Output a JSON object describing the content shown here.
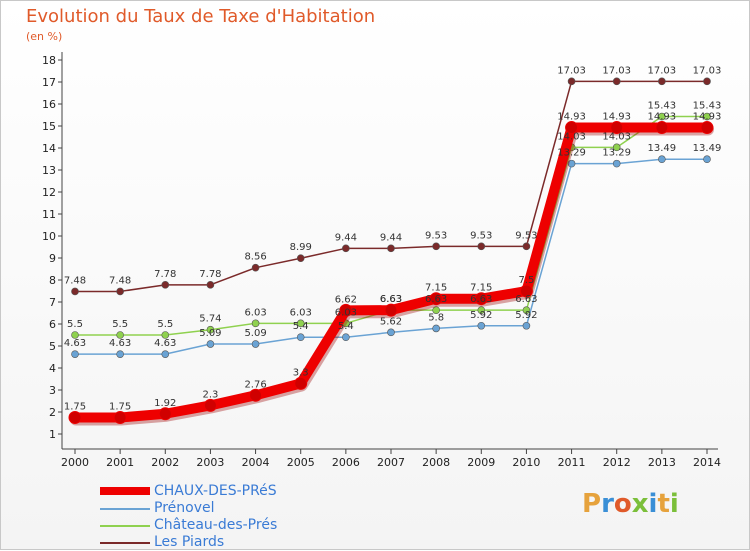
{
  "title": "Evolution du Taux de Taxe d'Habitation",
  "subtitle": "(en %)",
  "logo_text": "Proxiti",
  "chart_data": {
    "type": "line",
    "title": "Evolution du Taux de Taxe d'Habitation",
    "ylabel": "(en %)",
    "xlabel": "",
    "ylim": [
      1,
      18
    ],
    "grid": false,
    "legend_position": "bottom-left",
    "x": [
      "2000",
      "2001",
      "2002",
      "2003",
      "2004",
      "2005",
      "2006",
      "2007",
      "2008",
      "2009",
      "2010",
      "2011",
      "2012",
      "2013",
      "2014"
    ],
    "y_ticks": [
      "1",
      "2",
      "3",
      "4",
      "5",
      "6",
      "7",
      "8",
      "9",
      "10",
      "11",
      "12",
      "13",
      "14",
      "15",
      "16",
      "17",
      "18"
    ],
    "series": [
      {
        "name": "CHAUX-DES-PRéS",
        "color": "#ee0000",
        "values": [
          1.75,
          1.75,
          1.92,
          2.3,
          2.76,
          3.3,
          6.62,
          6.63,
          7.15,
          7.15,
          7.5,
          14.93,
          14.93,
          14.93,
          14.93
        ],
        "labels": [
          "1.75",
          "1.75",
          "1.92",
          "2.3",
          "2.76",
          "3.3",
          "6.62",
          "6.63",
          "7.15",
          "7.15",
          "7.5",
          "14.93",
          "14.93",
          "14.93",
          "14.93"
        ]
      },
      {
        "name": "Prénovel",
        "color": "#6aa3d4",
        "values": [
          4.63,
          4.63,
          4.63,
          5.09,
          5.09,
          5.4,
          5.4,
          5.62,
          5.8,
          5.92,
          5.92,
          13.29,
          13.29,
          13.49,
          13.49
        ],
        "labels": [
          "4.63",
          "4.63",
          "4.63",
          "5.09",
          "5.09",
          "5.4",
          "5.4",
          "5.62",
          "5.8",
          "5.92",
          "5.92",
          "13.29",
          "13.29",
          "13.49",
          "13.49"
        ]
      },
      {
        "name": "Château-des-Prés",
        "color": "#8fd14f",
        "values": [
          5.5,
          5.5,
          5.5,
          5.74,
          6.03,
          6.03,
          6.03,
          6.63,
          6.63,
          6.63,
          6.63,
          14.03,
          14.03,
          15.43,
          15.43
        ],
        "labels": [
          "5.5",
          "5.5",
          "5.5",
          "5.74",
          "6.03",
          "6.03",
          "6.03",
          "6.63",
          "6.63",
          "6.63",
          "6.63",
          "14.03",
          "14.03",
          "15.43",
          "15.43"
        ]
      },
      {
        "name": "Les Piards",
        "color": "#7b2a2a",
        "values": [
          7.48,
          7.48,
          7.78,
          7.78,
          8.56,
          8.99,
          9.44,
          9.44,
          9.53,
          9.53,
          9.53,
          17.03,
          17.03,
          17.03,
          17.03
        ],
        "labels": [
          "7.48",
          "7.48",
          "7.78",
          "7.78",
          "8.56",
          "8.99",
          "9.44",
          "9.44",
          "9.53",
          "9.53",
          "9.53",
          "17.03",
          "17.03",
          "17.03",
          "17.03"
        ]
      }
    ]
  }
}
